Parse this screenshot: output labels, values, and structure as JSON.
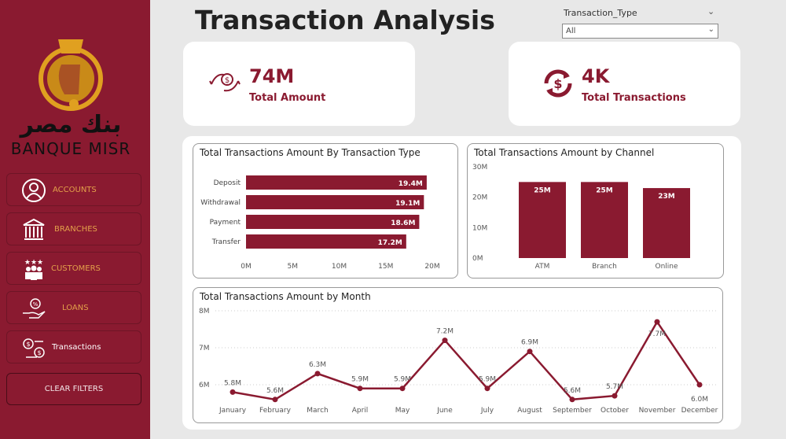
{
  "brand": {
    "name_latin": "BANQUE MISR",
    "name_arabic": "بنك مصر",
    "color": "#8a1a30",
    "accent": "#e3a04a"
  },
  "sidebar": {
    "items": [
      {
        "label": "ACCOUNTS",
        "icon": "user-circle-icon"
      },
      {
        "label": "BRANCHES",
        "icon": "bank-building-icon"
      },
      {
        "label": "CUSTOMERS",
        "icon": "customers-stars-icon"
      },
      {
        "label": "LOANS",
        "icon": "loan-hand-icon"
      },
      {
        "label": "Transactions",
        "icon": "money-exchange-icon"
      }
    ],
    "clear_filters": "CLEAR FILTERS"
  },
  "header": {
    "title": "Transaction Analysis"
  },
  "slicer": {
    "label": "Transaction_Type",
    "value": "All"
  },
  "kpis": [
    {
      "value": "74M",
      "label": "Total Amount",
      "icon": "money-transfer-icon"
    },
    {
      "value": "4K",
      "label": "Total Transactions",
      "icon": "currency-cycle-icon"
    }
  ],
  "chart_data": [
    {
      "type": "bar",
      "orientation": "horizontal",
      "title": "Total Transactions Amount By Transaction Type",
      "categories": [
        "Deposit",
        "Withdrawal",
        "Payment",
        "Transfer"
      ],
      "values": [
        19.4,
        19.1,
        18.6,
        17.2
      ],
      "data_labels": [
        "19.4M",
        "19.1M",
        "18.6M",
        "17.2M"
      ],
      "xlim": [
        0,
        20
      ],
      "xticks": [
        "0M",
        "5M",
        "10M",
        "15M",
        "20M"
      ],
      "unit": "M"
    },
    {
      "type": "bar",
      "title": "Total Transactions Amount by Channel",
      "categories": [
        "ATM",
        "Branch",
        "Online"
      ],
      "values": [
        25,
        25,
        23
      ],
      "data_labels": [
        "25M",
        "25M",
        "23M"
      ],
      "ylim": [
        0,
        30
      ],
      "yticks": [
        "0M",
        "10M",
        "20M",
        "30M"
      ],
      "unit": "M"
    },
    {
      "type": "line",
      "title": "Total Transactions Amount by Month",
      "categories": [
        "January",
        "February",
        "March",
        "April",
        "May",
        "June",
        "July",
        "August",
        "September",
        "October",
        "November",
        "December"
      ],
      "values": [
        5.8,
        5.6,
        6.3,
        5.9,
        5.9,
        7.2,
        5.9,
        6.9,
        5.6,
        5.7,
        7.7,
        6.0
      ],
      "data_labels": [
        "5.8M",
        "5.6M",
        "6.3M",
        "5.9M",
        "5.9M",
        "7.2M",
        "5.9M",
        "6.9M",
        "5.6M",
        "5.7M",
        "7.7M",
        "6.0M"
      ],
      "ylim": [
        5.6,
        8
      ],
      "yticks": [
        "6M",
        "7M",
        "8M"
      ],
      "grid": true,
      "unit": "M"
    }
  ]
}
